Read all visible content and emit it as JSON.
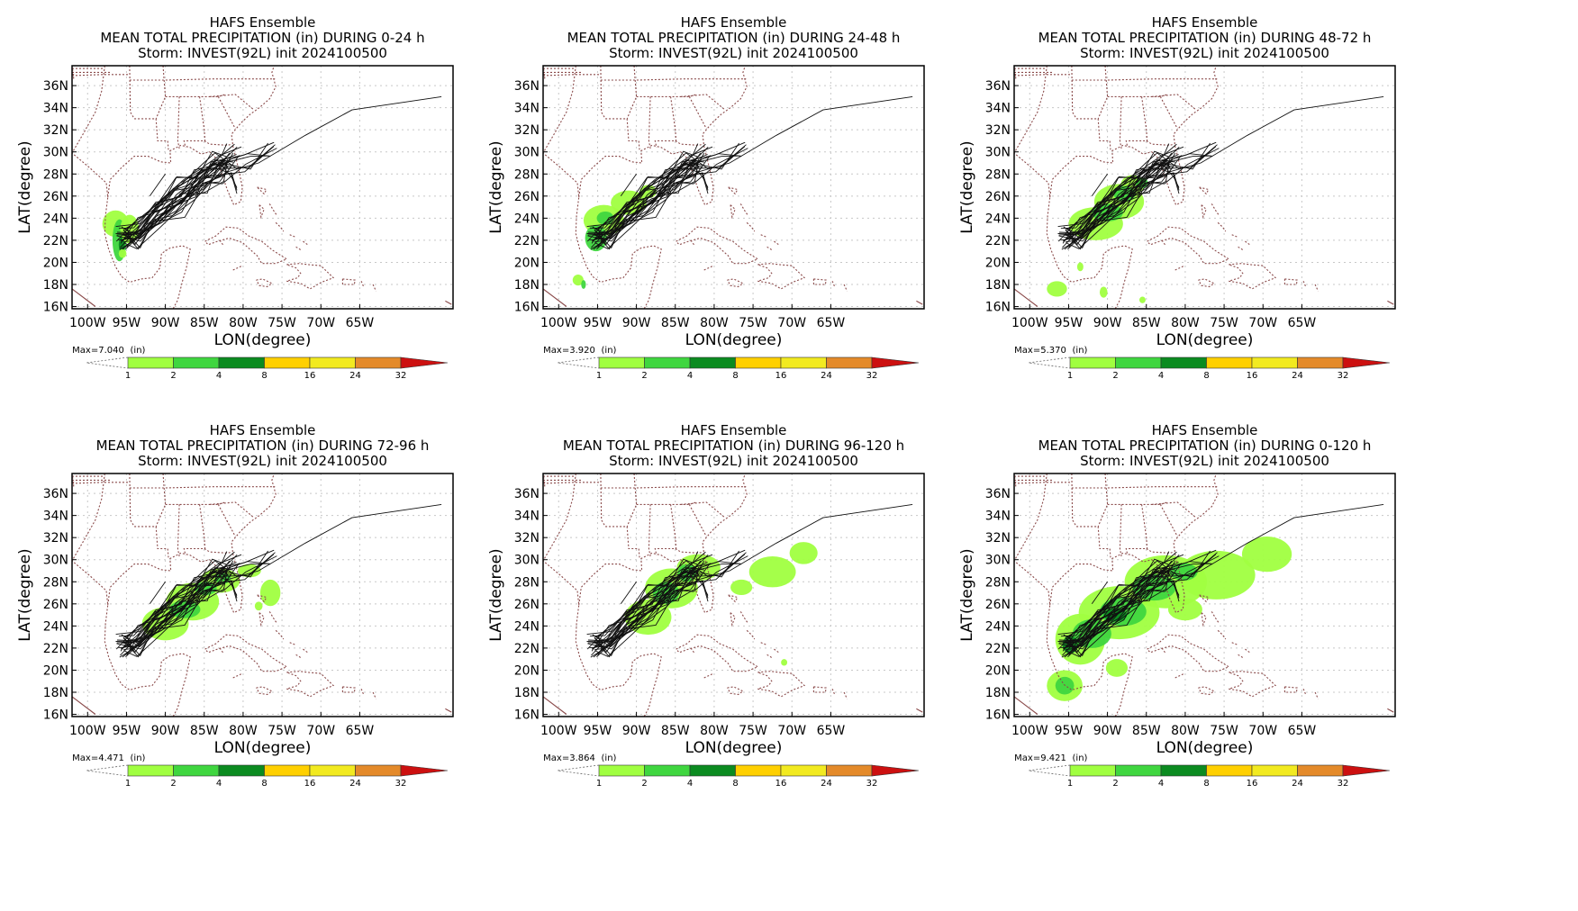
{
  "panels": [
    {
      "title": "HAFS Ensemble",
      "subtitle": "MEAN TOTAL PRECIPITATION (in) DURING  0-24 h",
      "storm": "Storm: INVEST(92L) init 2024100500",
      "max_label": "Max=7.040",
      "precip": [
        [
          -96.4,
          23.5,
          1.7,
          1.2,
          "#a0ff40"
        ],
        [
          -95.9,
          22.0,
          0.9,
          1.9,
          "#3fd63f"
        ],
        [
          -95.6,
          21.6,
          0.4,
          0.7,
          "#0b8b20"
        ],
        [
          -94.6,
          23.0,
          1.2,
          1.3,
          "#a0ff40"
        ],
        [
          -95.5,
          20.8,
          0.5,
          0.4,
          "#a0ff40"
        ]
      ]
    },
    {
      "title": "HAFS Ensemble",
      "subtitle": "MEAN TOTAL PRECIPITATION (in) DURING 24-48 h",
      "storm": "Storm: INVEST(92L) init 2024100500",
      "max_label": "Max=3.920",
      "precip": [
        [
          -94.2,
          23.8,
          2.6,
          1.4,
          "#a0ff40"
        ],
        [
          -91.0,
          25.4,
          2.3,
          1.1,
          "#a0ff40"
        ],
        [
          -88.5,
          26.4,
          1.1,
          0.6,
          "#a0ff40"
        ],
        [
          -95.2,
          22.2,
          1.4,
          1.2,
          "#3fd63f"
        ],
        [
          -94.0,
          24.0,
          1.1,
          0.6,
          "#3fd63f"
        ],
        [
          -97.5,
          18.4,
          0.7,
          0.5,
          "#a0ff40"
        ],
        [
          -96.8,
          18.0,
          0.3,
          0.4,
          "#3fd63f"
        ]
      ]
    },
    {
      "title": "HAFS Ensemble",
      "subtitle": "MEAN TOTAL PRECIPITATION (in) DURING 48-72 h",
      "storm": "Storm: INVEST(92L) init 2024100500",
      "max_label": "Max=5.370",
      "precip": [
        [
          -91.5,
          23.5,
          3.5,
          1.5,
          "#a0ff40"
        ],
        [
          -88.5,
          25.5,
          3.2,
          1.6,
          "#a0ff40"
        ],
        [
          -86.8,
          27.0,
          1.5,
          0.9,
          "#a0ff40"
        ],
        [
          -90.0,
          24.5,
          2.0,
          0.8,
          "#3fd63f"
        ],
        [
          -87.8,
          26.2,
          1.4,
          0.7,
          "#3fd63f"
        ],
        [
          -85.6,
          27.2,
          0.8,
          0.5,
          "#3fd63f"
        ],
        [
          -93.5,
          19.6,
          0.4,
          0.4,
          "#a0ff40"
        ],
        [
          -96.5,
          17.6,
          1.3,
          0.7,
          "#a0ff40"
        ],
        [
          -90.5,
          17.3,
          0.5,
          0.5,
          "#a0ff40"
        ],
        [
          -85.5,
          16.6,
          0.4,
          0.3,
          "#a0ff40"
        ]
      ]
    },
    {
      "title": "HAFS Ensemble",
      "subtitle": "MEAN TOTAL PRECIPITATION (in) DURING 72-96 h",
      "storm": "Storm: INVEST(92L) init 2024100500",
      "max_label": "Max=4.471",
      "precip": [
        [
          -90.0,
          24.2,
          3.0,
          1.5,
          "#a0ff40"
        ],
        [
          -86.5,
          26.2,
          3.4,
          1.7,
          "#a0ff40"
        ],
        [
          -83.0,
          28.1,
          2.6,
          1.1,
          "#a0ff40"
        ],
        [
          -79.2,
          29.0,
          1.5,
          0.6,
          "#a0ff40"
        ],
        [
          -87.5,
          25.5,
          2.0,
          0.8,
          "#3fd63f"
        ],
        [
          -84.8,
          27.4,
          1.4,
          0.6,
          "#3fd63f"
        ],
        [
          -82.6,
          28.3,
          1.0,
          0.5,
          "#3fd63f"
        ],
        [
          -76.5,
          27.0,
          1.3,
          1.2,
          "#a0ff40"
        ],
        [
          -78.0,
          25.8,
          0.5,
          0.4,
          "#a0ff40"
        ]
      ]
    },
    {
      "title": "HAFS Ensemble",
      "subtitle": "MEAN TOTAL PRECIPITATION (in) DURING 96-120 h",
      "storm": "Storm: INVEST(92L) init 2024100500",
      "max_label": "Max=3.864",
      "precip": [
        [
          -88.5,
          24.8,
          3.0,
          1.6,
          "#a0ff40"
        ],
        [
          -85.5,
          27.4,
          3.4,
          1.8,
          "#a0ff40"
        ],
        [
          -82.0,
          29.3,
          2.8,
          1.2,
          "#a0ff40"
        ],
        [
          -86.2,
          27.0,
          1.7,
          1.0,
          "#3fd63f"
        ],
        [
          -83.5,
          28.8,
          1.2,
          0.8,
          "#3fd63f"
        ],
        [
          -72.5,
          28.9,
          3.0,
          1.4,
          "#a0ff40"
        ],
        [
          -68.5,
          30.6,
          1.8,
          1.0,
          "#a0ff40"
        ],
        [
          -76.5,
          27.5,
          1.4,
          0.7,
          "#a0ff40"
        ],
        [
          -71.0,
          20.7,
          0.4,
          0.3,
          "#a0ff40"
        ]
      ]
    },
    {
      "title": "HAFS Ensemble",
      "subtitle": "MEAN TOTAL PRECIPITATION (in) DURING 0-120 h",
      "storm": "Storm: INVEST(92L) init 2024100500",
      "max_label": "Max=9.421",
      "precip": [
        [
          -93.5,
          22.8,
          3.2,
          2.3,
          "#a0ff40"
        ],
        [
          -88.5,
          25.2,
          5.2,
          2.4,
          "#a0ff40"
        ],
        [
          -82.5,
          28.0,
          5.3,
          2.4,
          "#a0ff40"
        ],
        [
          -76.0,
          28.6,
          5.0,
          2.2,
          "#a0ff40"
        ],
        [
          -69.5,
          30.5,
          3.2,
          1.6,
          "#a0ff40"
        ],
        [
          -80.0,
          25.5,
          2.2,
          1.0,
          "#a0ff40"
        ],
        [
          -95.5,
          18.6,
          2.3,
          1.4,
          "#a0ff40"
        ],
        [
          -88.8,
          20.2,
          1.4,
          0.8,
          "#a0ff40"
        ],
        [
          -95.5,
          18.6,
          1.2,
          0.8,
          "#3fd63f"
        ],
        [
          -92.0,
          23.3,
          2.5,
          1.3,
          "#3fd63f"
        ],
        [
          -88.0,
          25.3,
          3.0,
          1.3,
          "#3fd63f"
        ],
        [
          -84.0,
          27.5,
          2.8,
          1.2,
          "#3fd63f"
        ],
        [
          -80.2,
          28.9,
          1.8,
          0.8,
          "#3fd63f"
        ],
        [
          -94.8,
          22.3,
          1.0,
          0.8,
          "#0b8b20"
        ],
        [
          -89.0,
          25.0,
          1.5,
          0.6,
          "#0b8b20"
        ]
      ]
    }
  ],
  "axes": {
    "xlabel": "LON(degree)",
    "ylabel": "LAT(degree)",
    "xlim": [
      -102,
      -53
    ],
    "ylim": [
      15.8,
      37.8
    ],
    "xticks": [
      -100,
      -95,
      -90,
      -85,
      -80,
      -75,
      -70,
      -65
    ],
    "xtick_labels": [
      "100W",
      "95W",
      "90W",
      "85W",
      "80W",
      "75W",
      "70W",
      "65W"
    ],
    "yticks": [
      16,
      18,
      20,
      22,
      24,
      26,
      28,
      30,
      32,
      34,
      36
    ],
    "ytick_labels": [
      "16N",
      "18N",
      "20N",
      "22N",
      "24N",
      "26N",
      "28N",
      "30N",
      "32N",
      "34N",
      "36N"
    ],
    "grid": true
  },
  "colorbar": {
    "unit_label": "(in)",
    "levels": [
      "1",
      "2",
      "4",
      "8",
      "16",
      "24",
      "32"
    ],
    "colors": [
      "#a0ff40",
      "#3fd63f",
      "#0b8b20",
      "#ffd000",
      "#f2ea20",
      "#e48a2a",
      "#cc1010"
    ]
  },
  "map_colors": {
    "border": "#8a4a4a",
    "track": "#111111",
    "grid": "#c8c8c8"
  }
}
